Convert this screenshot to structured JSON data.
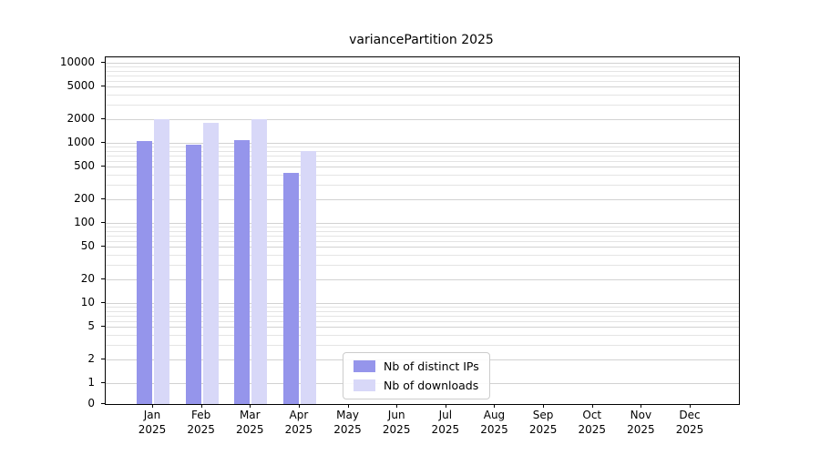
{
  "chart_data": {
    "type": "bar",
    "title": "variancePartition 2025",
    "categories": [
      "Jan 2025",
      "Feb 2025",
      "Mar 2025",
      "Apr 2025",
      "May 2025",
      "Jun 2025",
      "Jul 2025",
      "Aug 2025",
      "Sep 2025",
      "Oct 2025",
      "Nov 2025",
      "Dec 2025"
    ],
    "series": [
      {
        "name": "Nb of distinct IPs",
        "color": "#9595eb",
        "values": [
          1050,
          950,
          1080,
          420,
          0,
          0,
          0,
          0,
          0,
          0,
          0,
          0
        ]
      },
      {
        "name": "Nb of downloads",
        "color": "#d8d8f8",
        "values": [
          2000,
          1800,
          2000,
          780,
          0,
          0,
          0,
          0,
          0,
          0,
          0,
          0
        ]
      }
    ],
    "yscale": "log",
    "yticks": [
      10000,
      5000,
      2000,
      1000,
      500,
      200,
      100,
      50,
      20,
      10,
      5,
      2,
      1,
      0
    ],
    "ylim": [
      0,
      13000
    ],
    "grid": "horizontal",
    "legend_position": "lower center",
    "xlabel": "",
    "ylabel": ""
  }
}
